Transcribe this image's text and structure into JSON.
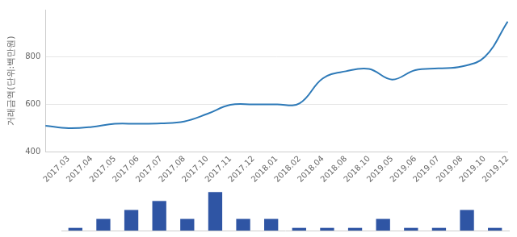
{
  "chart_data": [
    {
      "type": "line",
      "y_label": "거래금액(단위:백만원)",
      "categories": [
        null,
        "2017.03",
        "2017.04",
        "2017.05",
        "2017.06",
        "2017.07",
        "2017.08",
        "2017.10",
        "2017.11",
        "2017.12",
        "2018.01",
        "2018.02",
        "2018.04",
        "2018.08",
        "2018.10",
        "2019.05",
        "2019.06",
        "2019.07",
        "2019.08",
        "2019.10",
        "2019.12"
      ],
      "values": [
        510,
        500,
        505,
        518,
        518,
        520,
        528,
        560,
        598,
        600,
        600,
        605,
        710,
        740,
        750,
        705,
        745,
        752,
        760,
        800,
        950
      ],
      "color": "#2e7ab8",
      "ylim": [
        400,
        1000
      ],
      "yticks": [
        400,
        600,
        800
      ],
      "grid": true
    },
    {
      "type": "bar",
      "categories": [
        null,
        null,
        null,
        null,
        null,
        null,
        null,
        null,
        null,
        null,
        null,
        null,
        null,
        null,
        null,
        null
      ],
      "values": [
        1,
        2,
        3,
        4,
        2,
        5,
        2,
        2,
        1,
        1,
        1,
        2,
        1,
        1,
        3,
        1
      ],
      "color": "#2f55a4",
      "ylim": [
        0.7,
        5.2
      ],
      "tick_labels": false,
      "grid": false
    }
  ]
}
